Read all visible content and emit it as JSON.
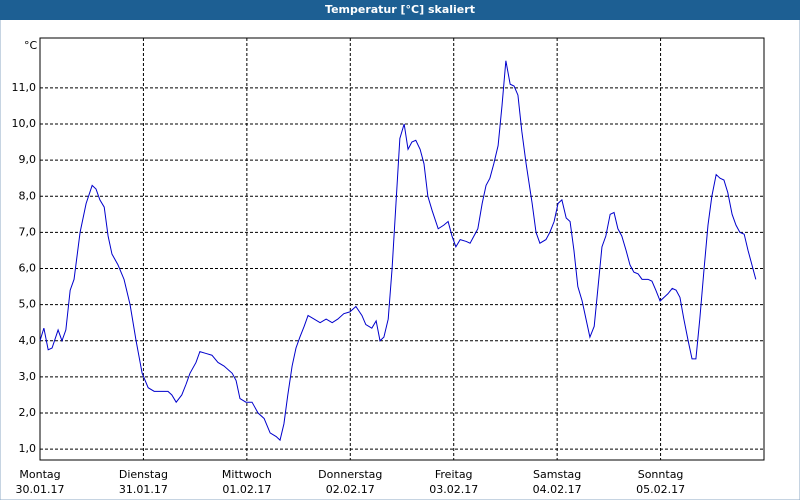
{
  "chart_data": {
    "type": "line",
    "title": "Temperatur [°C] skaliert",
    "y_label": "°C",
    "xlim": [
      0,
      168
    ],
    "ylim": [
      0.7,
      12.38
    ],
    "xticks": [
      {
        "value": 0,
        "label": "Montag",
        "date": "30.01.17"
      },
      {
        "value": 24,
        "label": "Dienstag",
        "date": "31.01.17"
      },
      {
        "value": 48,
        "label": "Mittwoch",
        "date": "01.02.17"
      },
      {
        "value": 72,
        "label": "Donnerstag",
        "date": "02.02.17"
      },
      {
        "value": 96,
        "label": "Freitag",
        "date": "03.02.17"
      },
      {
        "value": 120,
        "label": "Samstag",
        "date": "04.02.17"
      },
      {
        "value": 144,
        "label": "Sonntag",
        "date": "05.02.17"
      }
    ],
    "yticks": [
      {
        "value": 1,
        "label": "1,0"
      },
      {
        "value": 2,
        "label": "2,0"
      },
      {
        "value": 3,
        "label": "3,0"
      },
      {
        "value": 4,
        "label": "4,0"
      },
      {
        "value": 5,
        "label": "5,0"
      },
      {
        "value": 6,
        "label": "6,0"
      },
      {
        "value": 7,
        "label": "7,0"
      },
      {
        "value": 8,
        "label": "8,0"
      },
      {
        "value": 9,
        "label": "9,0"
      },
      {
        "value": 10,
        "label": "10,0"
      },
      {
        "value": 11,
        "label": "11,0"
      }
    ],
    "grid": true,
    "x": [
      0,
      0.9,
      1.9,
      2.8,
      4.2,
      5.1,
      6.0,
      7.0,
      7.9,
      9.3,
      10.7,
      12.1,
      13.0,
      13.9,
      14.9,
      15.8,
      16.7,
      18.1,
      19.5,
      20.9,
      22.3,
      23.7,
      25.1,
      26.5,
      27.8,
      29.7,
      30.6,
      31.6,
      32.9,
      33.9,
      34.8,
      36.2,
      37.1,
      38.5,
      39.9,
      41.3,
      42.7,
      44.6,
      45.5,
      46.4,
      47.8,
      49.2,
      50.6,
      52.0,
      53.4,
      54.8,
      55.7,
      56.6,
      57.5,
      58.5,
      59.4,
      60.3,
      61.3,
      62.2,
      63.6,
      65.0,
      66.4,
      67.8,
      69.1,
      70.5,
      71.9,
      73.3,
      74.7,
      75.6,
      77.0,
      78.0,
      78.9,
      79.8,
      80.8,
      81.7,
      82.6,
      83.5,
      84.5,
      85.4,
      86.3,
      87.2,
      88.2,
      89.1,
      90.0,
      91.0,
      92.4,
      93.7,
      94.7,
      95.6,
      96.5,
      97.5,
      98.9,
      99.8,
      100.7,
      101.6,
      102.6,
      103.5,
      104.4,
      105.3,
      106.3,
      107.2,
      108.1,
      109.1,
      110.0,
      110.9,
      111.8,
      112.8,
      114.2,
      115.1,
      116.0,
      117.4,
      118.3,
      119.3,
      120.2,
      121.1,
      122.1,
      123.0,
      123.9,
      124.8,
      125.8,
      126.7,
      127.6,
      128.6,
      129.5,
      130.4,
      131.3,
      132.3,
      133.2,
      134.1,
      135.0,
      136.0,
      136.9,
      137.8,
      138.8,
      139.7,
      141.1,
      142.0,
      142.9,
      143.9,
      144.8,
      145.7,
      146.7,
      147.6,
      148.5,
      149.4,
      150.4,
      151.3,
      152.2,
      153.1,
      154.1,
      155.0,
      155.9,
      156.9,
      157.8,
      158.7,
      159.6,
      160.6,
      161.5,
      162.4,
      163.4,
      164.3,
      165.2,
      166.1
    ],
    "series": [
      {
        "color": "#0000cc",
        "values": [
          4.0,
          4.35,
          3.75,
          3.8,
          4.3,
          4.0,
          4.3,
          5.4,
          5.7,
          7.0,
          7.8,
          8.3,
          8.2,
          7.9,
          7.7,
          6.9,
          6.4,
          6.1,
          5.7,
          5.0,
          4.0,
          3.1,
          2.7,
          2.6,
          2.6,
          2.6,
          2.5,
          2.3,
          2.5,
          2.8,
          3.1,
          3.4,
          3.7,
          3.65,
          3.6,
          3.4,
          3.3,
          3.1,
          2.9,
          2.4,
          2.3,
          2.3,
          2.0,
          1.85,
          1.45,
          1.35,
          1.25,
          1.7,
          2.5,
          3.3,
          3.8,
          4.1,
          4.4,
          4.7,
          4.6,
          4.5,
          4.6,
          4.5,
          4.6,
          4.75,
          4.8,
          4.95,
          4.7,
          4.45,
          4.35,
          4.55,
          4.0,
          4.1,
          4.6,
          6.0,
          7.8,
          9.6,
          10.0,
          9.3,
          9.5,
          9.55,
          9.3,
          8.9,
          8.0,
          7.6,
          7.1,
          7.2,
          7.3,
          6.9,
          6.6,
          6.8,
          6.75,
          6.7,
          6.9,
          7.1,
          7.8,
          8.3,
          8.5,
          8.9,
          9.4,
          10.5,
          11.75,
          11.1,
          11.05,
          10.8,
          9.8,
          8.9,
          7.8,
          7.0,
          6.7,
          6.8,
          7.0,
          7.3,
          7.8,
          7.9,
          7.4,
          7.3,
          6.5,
          5.5,
          5.1,
          4.6,
          4.1,
          4.4,
          5.5,
          6.6,
          6.9,
          7.5,
          7.55,
          7.1,
          6.9,
          6.5,
          6.1,
          5.9,
          5.85,
          5.7,
          5.7,
          5.65,
          5.4,
          5.1,
          5.2,
          5.3,
          5.45,
          5.4,
          5.2,
          4.6,
          4.0,
          3.5,
          3.5,
          4.6,
          6.0,
          7.2,
          8.0,
          8.6,
          8.5,
          8.45,
          8.1,
          7.5,
          7.2,
          7.0,
          6.95,
          6.5,
          6.1,
          5.7
        ]
      }
    ]
  }
}
